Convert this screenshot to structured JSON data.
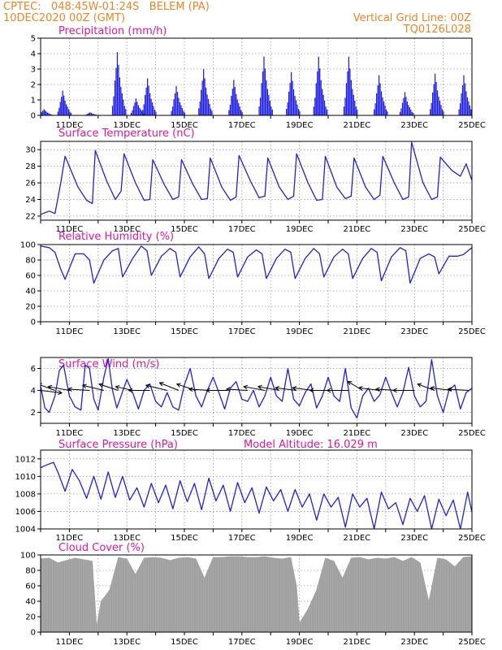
{
  "header": {
    "line1": "CPTEC:   048:45W-01:24S   BELEM (PA)",
    "line2": "10DEC2020 00Z (GMT)",
    "grid_note": "Vertical Grid Line: 00Z",
    "run_id": "TQ0126L028"
  },
  "colors": {
    "series": "#2020e0",
    "bars": "#2020e0",
    "cloud": "#a0a0a0",
    "title": "#e0189c",
    "header": "#e8862a",
    "wind_arrow": "#000000"
  },
  "chart_data": [
    {
      "id": "precip",
      "type": "bar",
      "title": "Precipitation (mm/h)",
      "xlabel": "",
      "ylabel": "",
      "x_ticks": [
        "11DEC",
        "13DEC",
        "15DEC",
        "17DEC",
        "19DEC",
        "21DEC",
        "23DEC",
        "25DEC"
      ],
      "xlim_days": [
        10,
        25
      ],
      "ylim": [
        0,
        5
      ],
      "y_ticks": [
        0,
        1,
        2,
        3,
        4,
        5
      ],
      "grid": true,
      "events": [
        {
          "center_day": 10.1,
          "peak": 0.4
        },
        {
          "center_day": 10.75,
          "peak": 1.6
        },
        {
          "center_day": 11.7,
          "peak": 0.2
        },
        {
          "center_day": 12.65,
          "peak": 4.1
        },
        {
          "center_day": 13.3,
          "peak": 1.1
        },
        {
          "center_day": 13.7,
          "peak": 2.4
        },
        {
          "center_day": 14.7,
          "peak": 1.9
        },
        {
          "center_day": 15.65,
          "peak": 3.0
        },
        {
          "center_day": 16.7,
          "peak": 2.3
        },
        {
          "center_day": 17.75,
          "peak": 3.8
        },
        {
          "center_day": 18.7,
          "peak": 2.8
        },
        {
          "center_day": 19.65,
          "peak": 3.8
        },
        {
          "center_day": 20.7,
          "peak": 3.8
        },
        {
          "center_day": 21.75,
          "peak": 2.6
        },
        {
          "center_day": 22.65,
          "peak": 1.5
        },
        {
          "center_day": 23.7,
          "peak": 2.7
        },
        {
          "center_day": 24.7,
          "peak": 2.6
        }
      ]
    },
    {
      "id": "temp",
      "type": "line",
      "title": "Surface Temperature (nC)",
      "xlabel": "",
      "ylabel": "",
      "x_ticks": [
        "11DEC",
        "13DEC",
        "15DEC",
        "17DEC",
        "19DEC",
        "21DEC",
        "23DEC",
        "25DEC"
      ],
      "xlim_days": [
        10,
        25
      ],
      "ylim": [
        21.5,
        31
      ],
      "y_ticks": [
        22,
        24,
        26,
        28,
        30
      ],
      "grid": true,
      "x": [
        10.0,
        10.3,
        10.5,
        10.7,
        10.85,
        11.3,
        11.6,
        11.8,
        11.9,
        12.3,
        12.6,
        12.8,
        12.9,
        13.3,
        13.6,
        13.8,
        13.9,
        14.3,
        14.6,
        14.8,
        14.9,
        15.3,
        15.6,
        15.8,
        15.9,
        16.3,
        16.6,
        16.8,
        16.9,
        17.3,
        17.6,
        17.8,
        17.9,
        18.3,
        18.6,
        18.8,
        18.9,
        19.3,
        19.6,
        19.8,
        19.9,
        20.3,
        20.6,
        20.8,
        20.9,
        21.3,
        21.6,
        21.8,
        21.9,
        22.3,
        22.6,
        22.8,
        22.9,
        23.3,
        23.6,
        23.8,
        23.9,
        24.3,
        24.6,
        24.8,
        25.0
      ],
      "y": [
        22.2,
        22.6,
        22.3,
        26.0,
        29.2,
        25.5,
        23.9,
        23.5,
        29.9,
        26.2,
        24.0,
        25.0,
        29.5,
        26.0,
        23.9,
        24.0,
        28.8,
        25.8,
        24.0,
        24.3,
        28.8,
        25.8,
        24.0,
        24.1,
        29.0,
        25.5,
        23.9,
        24.3,
        29.3,
        26.2,
        24.2,
        24.4,
        29.0,
        25.5,
        24.0,
        24.4,
        29.5,
        26.0,
        23.9,
        24.0,
        29.2,
        25.5,
        24.1,
        24.4,
        29.0,
        25.5,
        24.0,
        24.5,
        29.2,
        26.0,
        24.0,
        24.3,
        30.9,
        26.0,
        24.0,
        24.3,
        29.1,
        27.5,
        26.8,
        28.3,
        26.3
      ]
    },
    {
      "id": "rh",
      "type": "line",
      "title": "Relative Humidity (%)",
      "xlabel": "",
      "ylabel": "",
      "x_ticks": [
        "11DEC",
        "13DEC",
        "15DEC",
        "17DEC",
        "19DEC",
        "21DEC",
        "23DEC",
        "25DEC"
      ],
      "xlim_days": [
        10,
        25
      ],
      "ylim": [
        0,
        100
      ],
      "y_ticks": [
        0,
        20,
        40,
        60,
        80,
        100
      ],
      "grid": true,
      "x": [
        10.0,
        10.3,
        10.5,
        10.7,
        10.85,
        11.2,
        11.5,
        11.7,
        11.85,
        12.2,
        12.5,
        12.7,
        12.85,
        13.2,
        13.5,
        13.7,
        13.85,
        14.2,
        14.5,
        14.7,
        14.85,
        15.2,
        15.5,
        15.7,
        15.85,
        16.2,
        16.5,
        16.7,
        16.85,
        17.2,
        17.5,
        17.7,
        17.85,
        18.2,
        18.5,
        18.7,
        18.85,
        19.2,
        19.5,
        19.7,
        19.85,
        20.2,
        20.5,
        20.7,
        20.85,
        21.2,
        21.5,
        21.7,
        21.85,
        22.2,
        22.5,
        22.7,
        22.85,
        23.2,
        23.5,
        23.7,
        23.85,
        24.2,
        24.5,
        24.7,
        25.0
      ],
      "y": [
        98,
        96,
        90,
        68,
        55,
        88,
        88,
        80,
        50,
        80,
        92,
        95,
        58,
        82,
        98,
        92,
        60,
        85,
        95,
        90,
        58,
        84,
        97,
        88,
        56,
        82,
        94,
        90,
        58,
        84,
        93,
        88,
        56,
        82,
        94,
        90,
        56,
        82,
        95,
        88,
        58,
        84,
        94,
        88,
        56,
        82,
        95,
        90,
        53,
        84,
        96,
        92,
        50,
        82,
        88,
        84,
        62,
        85,
        85,
        87,
        96
      ]
    },
    {
      "id": "wind",
      "type": "line",
      "title": "Surface Wind (m/s)",
      "xlabel": "",
      "ylabel": "",
      "x_ticks": [
        "11DEC",
        "13DEC",
        "15DEC",
        "17DEC",
        "19DEC",
        "21DEC",
        "23DEC",
        "25DEC"
      ],
      "xlim_days": [
        10,
        25
      ],
      "ylim": [
        1,
        7
      ],
      "y_ticks": [
        2,
        4,
        6
      ],
      "grid": true,
      "x": [
        10.0,
        10.15,
        10.3,
        10.5,
        10.65,
        10.8,
        11.0,
        11.2,
        11.4,
        11.55,
        11.7,
        11.85,
        12.0,
        12.2,
        12.35,
        12.5,
        12.65,
        12.8,
        13.0,
        13.2,
        13.4,
        13.6,
        13.8,
        14.0,
        14.2,
        14.4,
        14.6,
        14.8,
        15.0,
        15.2,
        15.4,
        15.6,
        15.8,
        16.0,
        16.2,
        16.4,
        16.6,
        16.8,
        17.0,
        17.2,
        17.4,
        17.6,
        17.8,
        18.0,
        18.2,
        18.4,
        18.6,
        18.8,
        19.0,
        19.2,
        19.4,
        19.6,
        19.8,
        20.0,
        20.2,
        20.4,
        20.6,
        20.8,
        21.0,
        21.2,
        21.4,
        21.6,
        21.8,
        22.0,
        22.2,
        22.4,
        22.6,
        22.8,
        23.0,
        23.2,
        23.4,
        23.6,
        23.8,
        24.0,
        24.2,
        24.4,
        24.6,
        24.8,
        25.0
      ],
      "y": [
        4.4,
        2.4,
        2.0,
        3.5,
        5.8,
        6.3,
        3.5,
        2.5,
        2.2,
        6.3,
        6.0,
        3.2,
        2.2,
        5.2,
        6.9,
        4.0,
        2.4,
        3.5,
        5.0,
        3.8,
        2.3,
        4.0,
        4.6,
        3.0,
        2.5,
        3.8,
        2.5,
        2.2,
        4.5,
        6.0,
        3.5,
        2.5,
        4.0,
        5.2,
        3.8,
        2.3,
        4.2,
        4.8,
        3.2,
        3.0,
        4.0,
        2.5,
        3.5,
        5.2,
        3.5,
        3.0,
        6.0,
        3.2,
        2.6,
        3.8,
        4.6,
        2.4,
        3.5,
        5.2,
        3.5,
        3.0,
        6.0,
        2.4,
        1.5,
        3.5,
        4.2,
        3.0,
        3.6,
        5.2,
        3.8,
        2.5,
        3.8,
        6.1,
        3.5,
        2.5,
        3.0,
        6.8,
        3.5,
        2.0,
        4.0,
        4.5,
        2.3,
        3.8,
        4.2
      ],
      "arrows": [
        {
          "day": 10.0,
          "u": 1.0,
          "v": -0.2
        },
        {
          "day": 10.5,
          "u": -0.8,
          "v": 0.5
        },
        {
          "day": 11.0,
          "u": -1.0,
          "v": 0.3
        },
        {
          "day": 11.7,
          "u": -1.0,
          "v": 0.1
        },
        {
          "day": 12.2,
          "u": -1.0,
          "v": 0.4
        },
        {
          "day": 12.7,
          "u": -0.9,
          "v": 0.5
        },
        {
          "day": 13.2,
          "u": -0.8,
          "v": 0.3
        },
        {
          "day": 13.8,
          "u": -1.0,
          "v": 0.0
        },
        {
          "day": 14.4,
          "u": -1.0,
          "v": 0.4
        },
        {
          "day": 14.8,
          "u": -0.9,
          "v": 0.6
        },
        {
          "day": 15.4,
          "u": -0.9,
          "v": 0.5
        },
        {
          "day": 15.9,
          "u": -1.0,
          "v": 0.1
        },
        {
          "day": 16.5,
          "u": -1.0,
          "v": 0.0
        },
        {
          "day": 17.2,
          "u": -1.0,
          "v": 0.1
        },
        {
          "day": 17.8,
          "u": -1.0,
          "v": 0.3
        },
        {
          "day": 18.3,
          "u": -1.0,
          "v": 0.3
        },
        {
          "day": 18.9,
          "u": -1.0,
          "v": 0.2
        },
        {
          "day": 19.5,
          "u": -1.0,
          "v": 0.2
        },
        {
          "day": 20.1,
          "u": -1.0,
          "v": 0.0
        },
        {
          "day": 20.7,
          "u": -1.0,
          "v": 0.0
        },
        {
          "day": 21.2,
          "u": -0.7,
          "v": 0.7
        },
        {
          "day": 21.8,
          "u": -1.0,
          "v": 0.2
        },
        {
          "day": 22.4,
          "u": -1.0,
          "v": 0.1
        },
        {
          "day": 23.0,
          "u": -1.0,
          "v": 0.0
        },
        {
          "day": 23.7,
          "u": -0.8,
          "v": 0.5
        },
        {
          "day": 24.3,
          "u": -1.0,
          "v": 0.2
        },
        {
          "day": 24.9,
          "u": -1.0,
          "v": 0.1
        }
      ]
    },
    {
      "id": "pressure",
      "type": "line",
      "title": "Surface Pressure (hPa)",
      "annotation": "Model Altitude: 16.029 m",
      "xlabel": "",
      "ylabel": "",
      "x_ticks": [
        "11DEC",
        "13DEC",
        "15DEC",
        "17DEC",
        "19DEC",
        "21DEC",
        "23DEC",
        "25DEC"
      ],
      "xlim_days": [
        10,
        25
      ],
      "ylim": [
        1004,
        1013
      ],
      "y_ticks": [
        1004,
        1006,
        1008,
        1010,
        1012
      ],
      "grid": true,
      "x": [
        10.0,
        10.2,
        10.45,
        10.6,
        10.85,
        11.1,
        11.35,
        11.6,
        11.85,
        12.1,
        12.35,
        12.6,
        12.85,
        13.1,
        13.35,
        13.6,
        13.85,
        14.1,
        14.35,
        14.6,
        14.85,
        15.1,
        15.35,
        15.6,
        15.85,
        16.1,
        16.35,
        16.6,
        16.85,
        17.1,
        17.35,
        17.6,
        17.85,
        18.1,
        18.35,
        18.6,
        18.85,
        19.1,
        19.35,
        19.6,
        19.85,
        20.1,
        20.35,
        20.6,
        20.85,
        21.1,
        21.35,
        21.6,
        21.85,
        22.1,
        22.35,
        22.6,
        22.85,
        23.1,
        23.35,
        23.6,
        23.85,
        24.1,
        24.35,
        24.6,
        24.85,
        25.0
      ],
      "y": [
        1011.0,
        1011.3,
        1011.6,
        1010.5,
        1008.3,
        1010.8,
        1009.5,
        1007.5,
        1010.0,
        1007.4,
        1010.5,
        1007.6,
        1010.0,
        1007.3,
        1008.7,
        1006.5,
        1009.2,
        1007.0,
        1009.0,
        1006.3,
        1009.5,
        1007.1,
        1009.2,
        1006.2,
        1009.8,
        1007.2,
        1009.0,
        1006.0,
        1009.3,
        1007.0,
        1008.7,
        1005.8,
        1008.8,
        1007.2,
        1008.5,
        1006.0,
        1008.5,
        1006.5,
        1008.0,
        1005.0,
        1008.0,
        1006.5,
        1007.6,
        1004.2,
        1008.0,
        1006.5,
        1007.5,
        1004.0,
        1008.2,
        1006.3,
        1007.0,
        1004.5,
        1007.5,
        1006.0,
        1007.8,
        1004.0,
        1007.4,
        1005.5,
        1007.3,
        1004.0,
        1008.2,
        1005.9
      ]
    },
    {
      "id": "cloud",
      "type": "area",
      "title": "Cloud Cover (%)",
      "xlabel": "",
      "ylabel": "",
      "x_ticks": [
        "11DEC",
        "13DEC",
        "15DEC",
        "17DEC",
        "19DEC",
        "21DEC",
        "23DEC",
        "25DEC"
      ],
      "xlim_days": [
        10,
        25
      ],
      "ylim": [
        0,
        100
      ],
      "y_ticks": [
        0,
        20,
        40,
        60,
        80,
        100
      ],
      "grid": true,
      "x": [
        10.0,
        10.3,
        10.6,
        10.9,
        11.2,
        11.5,
        11.8,
        11.95,
        12.1,
        12.4,
        12.7,
        13.0,
        13.3,
        13.6,
        13.9,
        14.2,
        14.5,
        14.8,
        15.1,
        15.4,
        15.7,
        16.0,
        16.3,
        16.6,
        16.9,
        17.2,
        17.5,
        17.8,
        18.1,
        18.4,
        18.7,
        18.9,
        19.0,
        19.3,
        19.6,
        19.9,
        20.2,
        20.5,
        20.8,
        21.1,
        21.4,
        21.7,
        22.0,
        22.3,
        22.6,
        22.9,
        23.2,
        23.5,
        23.8,
        24.1,
        24.4,
        24.7,
        25.0
      ],
      "y": [
        95,
        96,
        90,
        93,
        96,
        94,
        92,
        8,
        40,
        55,
        97,
        95,
        75,
        96,
        97,
        96,
        93,
        96,
        97,
        95,
        70,
        97,
        97,
        98,
        98,
        97,
        97,
        98,
        96,
        95,
        97,
        60,
        12,
        30,
        55,
        96,
        92,
        70,
        96,
        97,
        94,
        96,
        95,
        97,
        92,
        97,
        90,
        40,
        96,
        94,
        85,
        97,
        98
      ]
    }
  ]
}
